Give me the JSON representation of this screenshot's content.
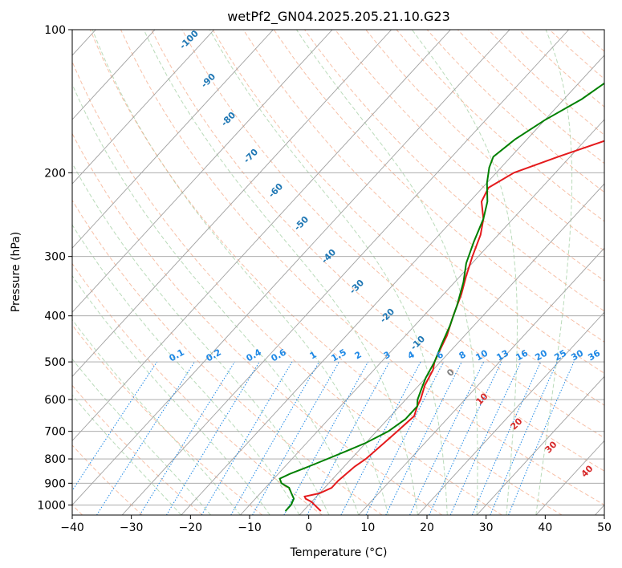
{
  "chart_data": {
    "type": "line",
    "title": "wetPf2_GN04.2025.205.21.10.G23",
    "xlabel": "Temperature (°C)",
    "ylabel": "Pressure (hPa)",
    "xlim": [
      -40,
      50
    ],
    "ylim": [
      1050,
      100
    ],
    "y_scale": "log",
    "x_ticks": [
      "−40",
      "−30",
      "−20",
      "−10",
      "0",
      "10",
      "20",
      "30",
      "40",
      "50"
    ],
    "y_ticks": [
      "100",
      "200",
      "300",
      "400",
      "500",
      "600",
      "700",
      "800",
      "900",
      "1000"
    ],
    "grid": true,
    "series": [
      {
        "name": "",
        "color": "#e41a1c",
        "points": [
          [
            1030,
            3
          ],
          [
            1000,
            1
          ],
          [
            985,
            0
          ],
          [
            970,
            -1.5
          ],
          [
            960,
            -2
          ],
          [
            945,
            0
          ],
          [
            920,
            1.2
          ],
          [
            890,
            1.2
          ],
          [
            860,
            1.5
          ],
          [
            830,
            1.8
          ],
          [
            800,
            2.5
          ],
          [
            750,
            3
          ],
          [
            700,
            3.5
          ],
          [
            650,
            4
          ],
          [
            620,
            3
          ],
          [
            600,
            2.5
          ],
          [
            560,
            1
          ],
          [
            520,
            0
          ],
          [
            500,
            -1
          ],
          [
            470,
            -2
          ],
          [
            440,
            -3
          ],
          [
            400,
            -5
          ],
          [
            360,
            -7
          ],
          [
            330,
            -9
          ],
          [
            300,
            -11
          ],
          [
            270,
            -13
          ],
          [
            250,
            -15
          ],
          [
            230,
            -18
          ],
          [
            215,
            -19
          ],
          [
            200,
            -17
          ],
          [
            185,
            -12
          ],
          [
            165,
            -4
          ],
          [
            140,
            3
          ],
          [
            120,
            12
          ],
          [
            110,
            16
          ],
          [
            100,
            20
          ]
        ]
      },
      {
        "name": "",
        "color": "#008000",
        "points": [
          [
            1030,
            -3
          ],
          [
            1000,
            -3
          ],
          [
            970,
            -3.5
          ],
          [
            940,
            -5
          ],
          [
            920,
            -6
          ],
          [
            900,
            -8
          ],
          [
            880,
            -9
          ],
          [
            860,
            -8
          ],
          [
            830,
            -6
          ],
          [
            800,
            -4
          ],
          [
            770,
            -2
          ],
          [
            740,
            0
          ],
          [
            700,
            2
          ],
          [
            660,
            3
          ],
          [
            620,
            3
          ],
          [
            600,
            2
          ],
          [
            570,
            1
          ],
          [
            540,
            0
          ],
          [
            500,
            -1
          ],
          [
            460,
            -2.5
          ],
          [
            420,
            -4
          ],
          [
            380,
            -6
          ],
          [
            340,
            -8.5
          ],
          [
            310,
            -11
          ],
          [
            280,
            -13
          ],
          [
            250,
            -15
          ],
          [
            230,
            -17
          ],
          [
            210,
            -20
          ],
          [
            195,
            -22
          ],
          [
            185,
            -23
          ],
          [
            170,
            -22
          ],
          [
            155,
            -20
          ],
          [
            140,
            -17
          ],
          [
            125,
            -15
          ],
          [
            110,
            -13
          ],
          [
            100,
            -10
          ]
        ]
      }
    ],
    "dry_adiabat_labels": [
      "-100",
      "-90",
      "-80",
      "-70",
      "-60",
      "-50",
      "-40",
      "-30",
      "-20",
      "-10"
    ],
    "moist_adiabat_labels": [
      "0",
      "10",
      "20",
      "30",
      "40"
    ],
    "mixing_ratio_labels": [
      "0.1",
      "0.2",
      "0.4",
      "0.6",
      "1",
      "1.5",
      "2",
      "3",
      "4",
      "6",
      "8",
      "10",
      "13",
      "16",
      "20",
      "25",
      "30",
      "36"
    ],
    "colors": {
      "temperature": "#e41a1c",
      "dewpoint": "#008000",
      "isotherm": "#a0a0a0",
      "dry_adiabat": "#f4a582",
      "moist_adiabat": "#9ccc9c",
      "mixing_ratio": "#1e88e5",
      "label_dry": "#1f77b4",
      "label_moist": "#d62728"
    }
  }
}
